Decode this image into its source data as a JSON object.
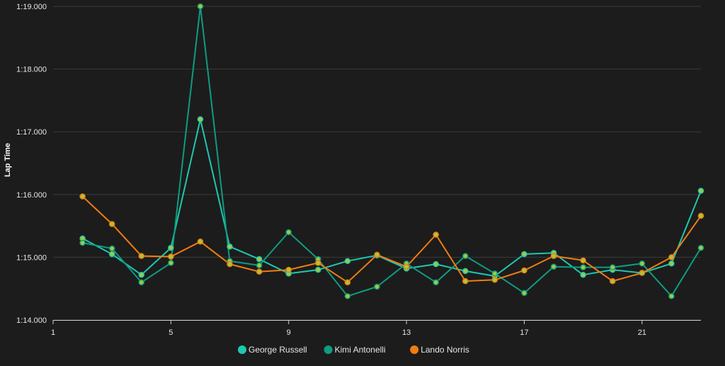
{
  "chart_data": {
    "type": "line",
    "ylabel": "Lap Time",
    "xlabel": "",
    "xlim": [
      1,
      23
    ],
    "ylim": [
      74.0,
      79.0
    ],
    "x_ticks": [
      1,
      5,
      9,
      13,
      17,
      21
    ],
    "y_ticks": [
      {
        "value": 74.0,
        "label": "1:14.000"
      },
      {
        "value": 75.0,
        "label": "1:15.000"
      },
      {
        "value": 76.0,
        "label": "1:16.000"
      },
      {
        "value": 77.0,
        "label": "1:17.000"
      },
      {
        "value": 78.0,
        "label": "1:18.000"
      },
      {
        "value": 79.0,
        "label": "1:19.000"
      }
    ],
    "grid": true,
    "legend_position": "bottom-center",
    "x": [
      2,
      3,
      4,
      5,
      6,
      7,
      8,
      9,
      10,
      11,
      12,
      13,
      14,
      15,
      16,
      17,
      18,
      19,
      20,
      21,
      22,
      23
    ],
    "series": [
      {
        "name": "George Russell",
        "color": "#1ec8b0",
        "values": [
          75.3,
          75.05,
          74.72,
          75.15,
          77.2,
          75.17,
          74.97,
          74.74,
          74.8,
          74.94,
          75.03,
          74.82,
          74.89,
          74.78,
          74.7,
          75.05,
          75.07,
          74.72,
          74.8,
          74.75,
          74.9,
          76.06
        ]
      },
      {
        "name": "Kimi Antonelli",
        "color": "#0e9c82",
        "values": [
          75.23,
          75.14,
          74.6,
          74.91,
          79.0,
          74.94,
          74.87,
          75.4,
          74.97,
          74.38,
          74.53,
          74.9,
          74.6,
          75.02,
          74.74,
          74.43,
          74.85,
          74.84,
          74.84,
          74.9,
          74.38,
          75.15
        ]
      },
      {
        "name": "Lando Norris",
        "color": "#f27c10",
        "values": [
          75.97,
          75.53,
          75.02,
          75.01,
          75.25,
          74.89,
          74.77,
          74.8,
          74.91,
          74.6,
          75.04,
          74.85,
          75.36,
          74.62,
          74.64,
          74.79,
          75.02,
          74.95,
          74.62,
          74.75,
          75.0,
          75.66
        ]
      }
    ],
    "marker_fill": "#a8c83c"
  }
}
